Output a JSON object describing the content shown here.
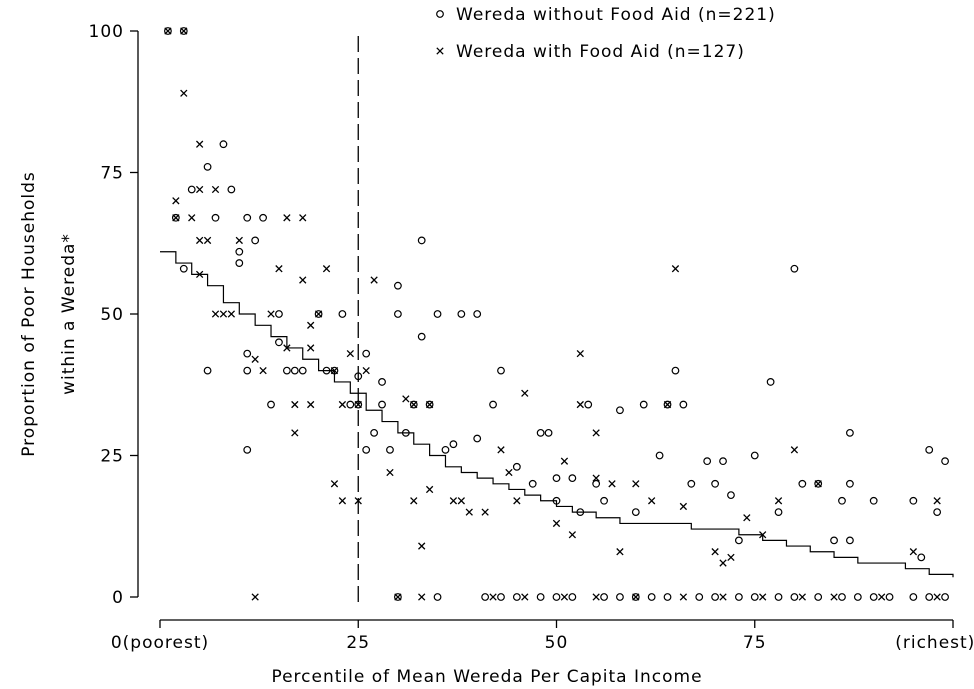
{
  "chart_data": {
    "type": "scatter",
    "xlabel": "Percentile of Mean Wereda Per Capita Income",
    "ylabel": [
      "Proportion of Poor Households",
      "within a Wereda*"
    ],
    "xlim": [
      0,
      100
    ],
    "ylim": [
      0,
      100
    ],
    "xticks": [
      {
        "value": 0,
        "label": "0(poorest)"
      },
      25,
      50,
      75,
      {
        "value": 100,
        "label": "(richest)100"
      }
    ],
    "yticks": [
      0,
      25,
      50,
      75,
      100
    ],
    "vline": 25,
    "series": [
      {
        "name": "Wereda without Food Aid (n=221)",
        "marker": "o",
        "color": "#000000",
        "x": [
          1,
          3,
          2,
          3,
          4,
          6,
          7,
          8,
          9,
          10,
          10,
          11,
          12,
          13,
          15,
          15,
          16,
          17,
          18,
          6,
          11,
          11,
          11,
          14,
          20,
          21,
          22,
          23,
          24,
          25,
          25,
          26,
          26,
          27,
          28,
          28,
          29,
          30,
          30,
          31,
          32,
          33,
          33,
          34,
          35,
          36,
          37,
          38,
          40,
          40,
          42,
          43,
          45,
          47,
          48,
          49,
          50,
          50,
          52,
          53,
          54,
          55,
          56,
          58,
          60,
          61,
          63,
          64,
          65,
          66,
          67,
          69,
          70,
          71,
          72,
          73,
          75,
          77,
          78,
          80,
          81,
          83,
          85,
          86,
          87,
          87,
          87,
          90,
          95,
          96,
          97,
          99,
          98,
          30,
          35,
          41,
          43,
          45,
          48,
          50,
          52,
          56,
          58,
          60,
          62,
          64,
          68,
          70,
          73,
          75,
          78,
          80,
          83,
          86,
          88,
          90,
          92,
          95,
          97,
          99
        ],
        "values": [
          100,
          100,
          67,
          58,
          72,
          76,
          67,
          80,
          72,
          61,
          59,
          67,
          63,
          67,
          50,
          45,
          40,
          40,
          40,
          40,
          43,
          40,
          26,
          34,
          50,
          40,
          40,
          50,
          34,
          39,
          34,
          43,
          26,
          29,
          38,
          34,
          26,
          55,
          50,
          29,
          34,
          63,
          46,
          34,
          50,
          26,
          27,
          50,
          50,
          28,
          34,
          40,
          23,
          20,
          29,
          29,
          17,
          21,
          21,
          15,
          34,
          20,
          17,
          33,
          15,
          34,
          25,
          34,
          40,
          34,
          20,
          24,
          20,
          24,
          18,
          10,
          25,
          38,
          15,
          58,
          20,
          20,
          10,
          17,
          29,
          20,
          10,
          17,
          17,
          7,
          26,
          24,
          15,
          0,
          0,
          0,
          0,
          0,
          0,
          0,
          0,
          0,
          0,
          0,
          0,
          0,
          0,
          0,
          0,
          0,
          0,
          0,
          0,
          0,
          0,
          0,
          0,
          0,
          0,
          0
        ]
      },
      {
        "name": "Wereda with Food Aid (n=127)",
        "marker": "x",
        "color": "#000000",
        "x": [
          1,
          3,
          3,
          2,
          2,
          4,
          5,
          5,
          7,
          5,
          6,
          5,
          7,
          8,
          9,
          10,
          13,
          12,
          14,
          15,
          16,
          16,
          18,
          17,
          17,
          18,
          19,
          19,
          19,
          20,
          21,
          22,
          22,
          23,
          23,
          24,
          25,
          25,
          26,
          27,
          29,
          31,
          32,
          32,
          33,
          34,
          34,
          37,
          38,
          39,
          41,
          43,
          44,
          45,
          46,
          50,
          51,
          52,
          53,
          53,
          55,
          55,
          57,
          58,
          60,
          62,
          64,
          65,
          66,
          70,
          71,
          72,
          74,
          76,
          78,
          80,
          83,
          95,
          98,
          12,
          30,
          33,
          42,
          46,
          51,
          55,
          60,
          66,
          71,
          76,
          81,
          85,
          91,
          98
        ],
        "values": [
          100,
          100,
          89,
          70,
          67,
          67,
          80,
          72,
          72,
          63,
          63,
          57,
          50,
          50,
          50,
          63,
          40,
          42,
          50,
          58,
          44,
          67,
          67,
          34,
          29,
          56,
          48,
          44,
          34,
          50,
          58,
          40,
          20,
          17,
          34,
          43,
          17,
          34,
          40,
          56,
          22,
          35,
          17,
          34,
          9,
          19,
          34,
          17,
          17,
          15,
          15,
          26,
          22,
          17,
          36,
          13,
          24,
          11,
          43,
          34,
          29,
          21,
          20,
          8,
          20,
          17,
          34,
          58,
          16,
          8,
          6,
          7,
          14,
          11,
          17,
          26,
          20,
          8,
          17,
          0,
          0,
          0,
          0,
          0,
          0,
          0,
          0,
          0,
          0,
          0,
          0,
          0,
          0,
          0
        ]
      }
    ],
    "fit": {
      "x": [
        0,
        2,
        4,
        6,
        8,
        10,
        12,
        14,
        16,
        18,
        20,
        22,
        24,
        26,
        28,
        30,
        32,
        34,
        36,
        38,
        40,
        42,
        44,
        46,
        48,
        50,
        52,
        55,
        58,
        61,
        64,
        67,
        70,
        73,
        76,
        79,
        82,
        85,
        88,
        91,
        94,
        97,
        100
      ],
      "y": [
        61,
        59,
        57,
        55,
        52,
        50,
        48,
        46,
        44,
        42,
        40,
        38,
        36,
        33,
        31,
        29,
        27,
        25,
        23,
        22,
        21,
        20,
        19,
        18,
        17,
        16,
        15,
        14,
        13,
        13,
        13,
        12,
        12,
        11,
        10,
        9,
        8,
        7,
        6,
        6,
        5,
        4,
        3.5
      ]
    }
  }
}
